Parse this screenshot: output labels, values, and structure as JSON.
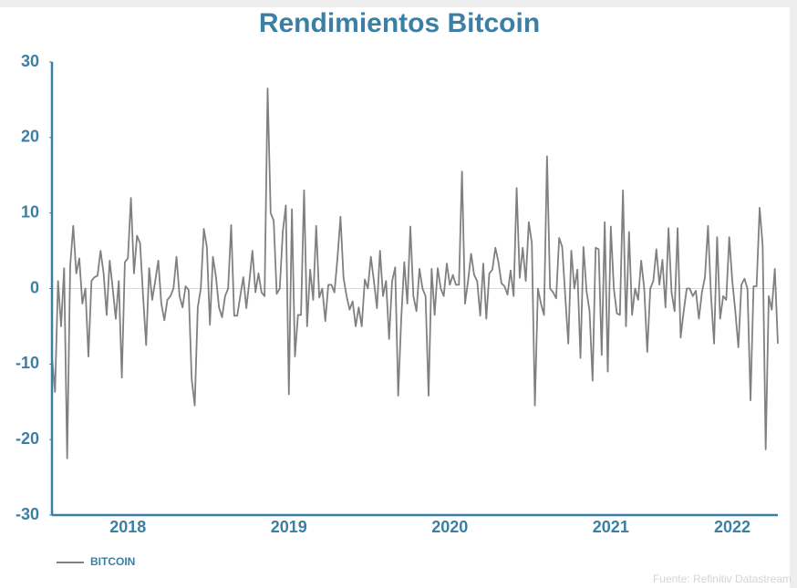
{
  "chart_data": {
    "type": "line",
    "title": "Rendimientos Bitcoin",
    "source": "Fuente: Refinitiv Datastream",
    "categories": [
      null,
      null,
      null,
      null,
      null,
      null,
      null,
      null,
      null,
      null,
      null,
      null,
      null,
      null,
      null,
      null,
      null,
      null,
      null,
      null,
      null,
      null,
      null,
      null,
      null,
      "2018",
      null,
      null,
      null,
      null,
      null,
      null,
      null,
      null,
      null,
      null,
      null,
      null,
      null,
      null,
      null,
      null,
      null,
      null,
      null,
      null,
      null,
      null,
      null,
      null,
      null,
      null,
      null,
      null,
      null,
      null,
      null,
      null,
      null,
      null,
      null,
      null,
      null,
      null,
      null,
      null,
      null,
      null,
      null,
      null,
      null,
      null,
      null,
      null,
      null,
      null,
      null,
      null,
      "2019",
      null,
      null,
      null,
      null,
      null,
      null,
      null,
      null,
      null,
      null,
      null,
      null,
      null,
      null,
      null,
      null,
      null,
      null,
      null,
      null,
      null,
      null,
      null,
      null,
      null,
      null,
      null,
      null,
      null,
      null,
      null,
      null,
      null,
      null,
      null,
      null,
      null,
      null,
      null,
      null,
      null,
      null,
      null,
      null,
      null,
      null,
      null,
      null,
      null,
      null,
      null,
      null,
      "2020",
      null,
      null,
      null,
      null,
      null,
      null,
      null,
      null,
      null,
      null,
      null,
      null,
      null,
      null,
      null,
      null,
      null,
      null,
      null,
      null,
      null,
      null,
      null,
      null,
      null,
      null,
      null,
      null,
      null,
      null,
      null,
      null,
      null,
      null,
      null,
      null,
      null,
      null,
      null,
      null,
      null,
      null,
      null,
      null,
      null,
      null,
      null,
      null,
      null,
      null,
      null,
      null,
      "2021",
      null,
      null,
      null,
      null,
      null,
      null,
      null,
      null,
      null,
      null,
      null,
      null,
      null,
      null,
      null,
      null,
      null,
      null,
      null,
      null,
      null,
      null,
      null,
      null,
      null,
      null,
      null,
      null,
      null,
      null,
      null,
      null,
      null,
      null,
      null,
      null,
      null,
      null,
      null,
      "2022",
      null,
      null,
      null,
      null,
      null,
      null,
      null,
      null,
      null,
      null,
      null,
      null,
      null,
      null,
      null
    ],
    "series": [
      {
        "name": "BITCOIN",
        "color": "#808080",
        "values": [
          -9,
          -13.7,
          1,
          -5,
          2.7,
          -22.5,
          3,
          8.3,
          2,
          4,
          -2,
          0,
          -9,
          1,
          1.5,
          1.7,
          5,
          2,
          -3.5,
          3.7,
          0,
          -4,
          1,
          -11.8,
          3.5,
          4,
          12,
          2,
          7,
          6,
          -1,
          -7.5,
          2.7,
          -1.5,
          1,
          3.7,
          -2,
          -4.2,
          -1.5,
          -1,
          0,
          4.2,
          -1,
          -2.5,
          0.3,
          -0.2,
          -12,
          -15.5,
          -2.5,
          0,
          7.9,
          5.5,
          -4.8,
          4.2,
          1.5,
          -2.5,
          -3.8,
          -1,
          0,
          8.4,
          -3.6,
          -3.6,
          -1,
          1.5,
          -2.6,
          1,
          5,
          -0.5,
          2,
          -0.5,
          -1,
          26.5,
          10,
          9,
          -0.7,
          0,
          7.5,
          11,
          -14,
          10.5,
          -9,
          -3.5,
          -3.5,
          13,
          -5,
          2.5,
          -1.5,
          8.3,
          -1.2,
          0,
          -4.3,
          0.5,
          0.5,
          -0.5,
          4,
          9.5,
          1.4,
          -1,
          -2.8,
          -1.7,
          -5,
          -2.5,
          -5,
          1.2,
          0,
          4.2,
          1,
          -2.6,
          5,
          -1,
          1,
          -6.7,
          1,
          2.8,
          -14.2,
          -4,
          3.5,
          -2,
          8.2,
          -1,
          -3,
          2.6,
          0,
          -1,
          -14.2,
          2.6,
          -3.5,
          2.7,
          0,
          -1,
          3.3,
          0.5,
          1.8,
          0.5,
          0.5,
          15.5,
          -2,
          1,
          4.6,
          1.8,
          1,
          -3.6,
          3.3,
          -4,
          2,
          2.5,
          5.4,
          3.5,
          0.7,
          0.3,
          -0.8,
          2.4,
          -1,
          13.3,
          1.4,
          5.4,
          1,
          8.8,
          6,
          -15.5,
          0,
          -2,
          -3.5,
          17.5,
          0,
          -0.5,
          -1.3,
          6.7,
          5.5,
          -1,
          -7.3,
          5,
          0,
          2.5,
          -9.2,
          5.5,
          -0.3,
          -3,
          -12.2,
          5.4,
          5.2,
          -8.8,
          8.8,
          -11,
          8.2,
          0,
          -3.3,
          -3.5,
          13,
          -5,
          7.5,
          -3.5,
          0,
          -1.5,
          3.7,
          0,
          -8.4,
          0,
          1,
          5.2,
          0.5,
          3.8,
          -2.5,
          8,
          -0.5,
          -3,
          8,
          -6.5,
          -3,
          0,
          0,
          -1,
          -0.3,
          -4,
          -0.5,
          1.5,
          8.3,
          -1,
          -7.3,
          6.8,
          -4,
          -1,
          -1.5,
          6.8,
          1,
          -3,
          -7.8,
          0.5,
          1.3,
          0,
          -14.8,
          0.3,
          0.3,
          10.7,
          5.7,
          -21.3,
          -1,
          -2.8,
          2.6,
          -7.3
        ]
      }
    ],
    "ylim": [
      -30,
      30
    ],
    "yticks": [
      -30,
      -20,
      -10,
      0,
      10,
      20,
      30
    ],
    "grid": false,
    "legend": "bottom-left"
  }
}
